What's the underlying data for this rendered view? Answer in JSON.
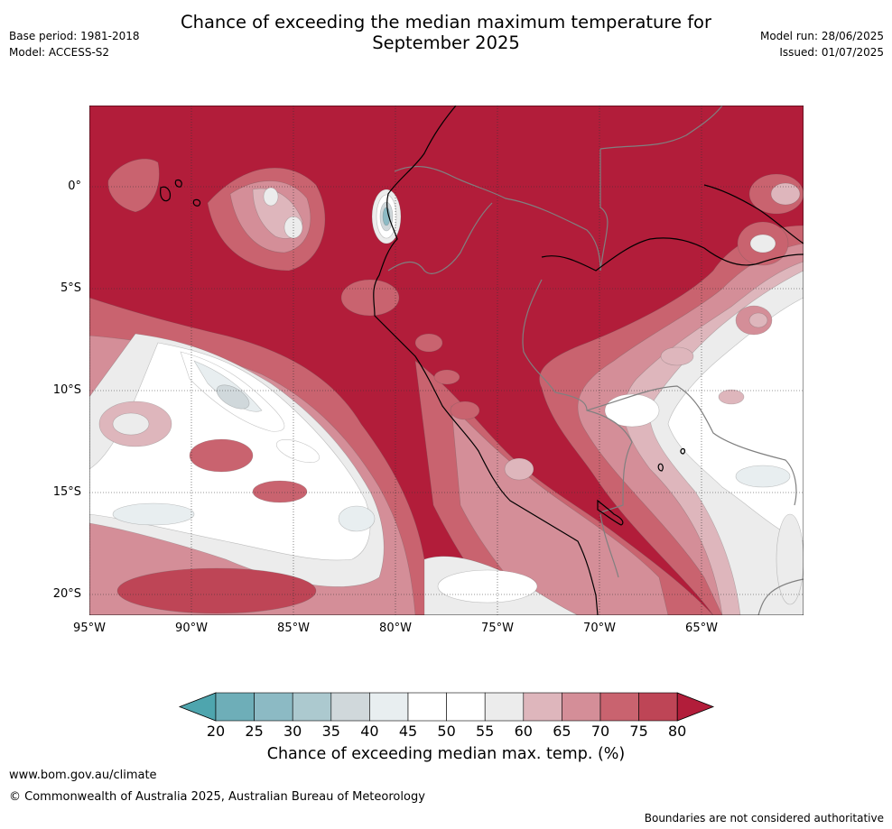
{
  "title": {
    "line1": "Chance of exceeding the median maximum temperature for",
    "line2": "September 2025"
  },
  "meta_left": {
    "base_period": "Base period: 1981-2018",
    "model": "Model: ACCESS-S2"
  },
  "meta_right": {
    "model_run": "Model run: 28/06/2025",
    "issued": "Issued: 01/07/2025"
  },
  "axes": {
    "lat_labels": [
      "0°",
      "5°S",
      "10°S",
      "15°S",
      "20°S"
    ],
    "lon_labels": [
      "95°W",
      "90°W",
      "85°W",
      "80°W",
      "75°W",
      "70°W",
      "65°W"
    ]
  },
  "colorbar": {
    "ticks": [
      "20",
      "25",
      "30",
      "35",
      "40",
      "45",
      "50",
      "55",
      "60",
      "65",
      "70",
      "75",
      "80"
    ],
    "colors": [
      "#6eaeb8",
      "#8cbac4",
      "#acc9cf",
      "#d0d8db",
      "#e8eef0",
      "#ffffff",
      "#ffffff",
      "#ececec",
      "#deb6bc",
      "#d48e98",
      "#c9636f",
      "#be4556"
    ],
    "under_color": "#4ea5ae",
    "over_color": "#b21d3a",
    "label": "Chance of exceeding median max. temp. (%)"
  },
  "map_colors": {
    "base": "#b21d3a",
    "coast": "#000000",
    "border": "#808080"
  },
  "footer": {
    "url": "www.bom.gov.au/climate",
    "copyright": "© Commonwealth of Australia 2025, Australian Bureau of Meteorology",
    "disclaimer": "Boundaries are not considered authoritative"
  }
}
